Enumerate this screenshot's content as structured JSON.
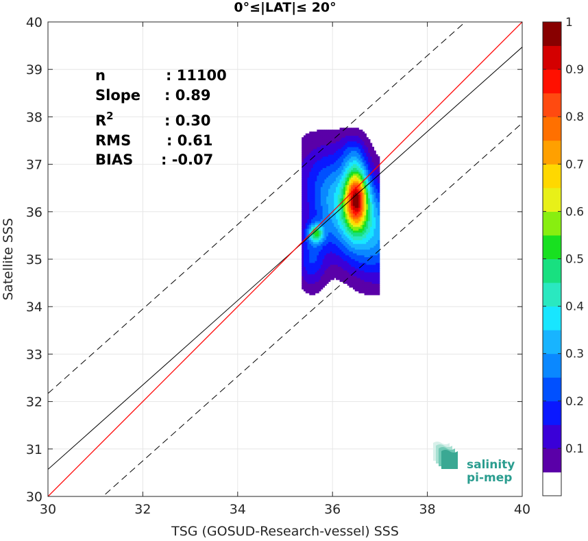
{
  "chart_data": {
    "type": "heatmap",
    "title": "0°≤|LAT|≤ 20°",
    "xlabel": "TSG (GOSUD-Research-vessel) SSS",
    "ylabel": "Satellite SSS",
    "xlim": [
      30,
      40
    ],
    "ylim": [
      30,
      40
    ],
    "xticks": [
      "30",
      "32",
      "34",
      "36",
      "38",
      "40"
    ],
    "yticks": [
      "30",
      "31",
      "32",
      "33",
      "34",
      "35",
      "36",
      "37",
      "38",
      "39",
      "40"
    ],
    "grid": true,
    "stats": [
      {
        "label": "n",
        "value": ": 11100"
      },
      {
        "label": "Slope",
        "value": ": 0.89"
      },
      {
        "label": "R",
        "sup": "2",
        "value": ": 0.30"
      },
      {
        "label": "RMS",
        "value": ": 0.61"
      },
      {
        "label": "BIAS",
        "value": ": -0.07"
      }
    ],
    "reference_lines": {
      "identity": {
        "slope": 1.0,
        "intercept": 0.0,
        "color": "#ff0000"
      },
      "fit": {
        "slope": 0.89,
        "intercept": 3.87,
        "color": "#000000"
      },
      "offsets": [
        -1.6,
        1.6
      ]
    },
    "density_peaks": [
      {
        "x": 36.5,
        "y": 36.3,
        "level": 1.0
      },
      {
        "x": 35.65,
        "y": 35.55,
        "level": 0.65
      }
    ],
    "colorbar": {
      "ticks": [
        "0.1",
        "0.2",
        "0.3",
        "0.4",
        "0.5",
        "0.6",
        "0.7",
        "0.8",
        "0.9",
        "1"
      ],
      "levels": [
        0.05,
        0.1,
        0.15,
        0.2,
        0.25,
        0.3,
        0.35,
        0.4,
        0.45,
        0.5,
        0.55,
        0.6,
        0.65,
        0.7,
        0.75,
        0.8,
        0.85,
        0.9,
        0.95,
        1.0
      ],
      "colors": [
        "#ffffff",
        "#5a00a8",
        "#3a00d8",
        "#0a18ff",
        "#0050ff",
        "#0a88ff",
        "#18b4ff",
        "#18e6ff",
        "#2ae8c0",
        "#18e080",
        "#18e020",
        "#88ee10",
        "#e8f018",
        "#ffd800",
        "#ffa000",
        "#ff7000",
        "#ff4a10",
        "#ff1000",
        "#d40000",
        "#880000"
      ]
    },
    "logo": {
      "line1": "salinity",
      "line2": "pi-mep"
    }
  }
}
